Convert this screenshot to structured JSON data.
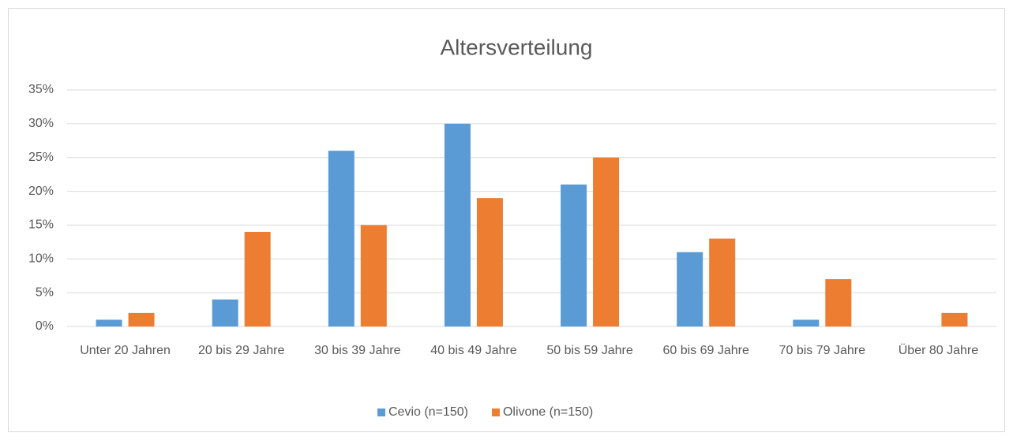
{
  "chart_data": {
    "type": "bar",
    "title": "Altersverteilung",
    "categories": [
      "Unter 20 Jahren",
      "20 bis 29 Jahre",
      "30 bis 39 Jahre",
      "40 bis 49 Jahre",
      "50 bis 59 Jahre",
      "60 bis 69 Jahre",
      "70 bis 79 Jahre",
      "Über 80 Jahre"
    ],
    "series": [
      {
        "name": "Cevio (n=150)",
        "color": "#5b9bd5",
        "values": [
          1,
          4,
          26,
          30,
          21,
          11,
          1,
          0
        ]
      },
      {
        "name": "Olivone (n=150)",
        "color": "#ed7d31",
        "values": [
          2,
          14,
          15,
          19,
          25,
          13,
          7,
          2
        ]
      }
    ],
    "ylim": [
      0,
      35
    ],
    "yticks": [
      {
        "value": 0,
        "label": "0%"
      },
      {
        "value": 5,
        "label": "5%"
      },
      {
        "value": 10,
        "label": "10%"
      },
      {
        "value": 15,
        "label": "15%"
      },
      {
        "value": 20,
        "label": "20%"
      },
      {
        "value": 25,
        "label": "25%"
      },
      {
        "value": 30,
        "label": "30%"
      },
      {
        "value": 35,
        "label": "35%"
      }
    ],
    "grid": true,
    "legend": "bottom"
  }
}
